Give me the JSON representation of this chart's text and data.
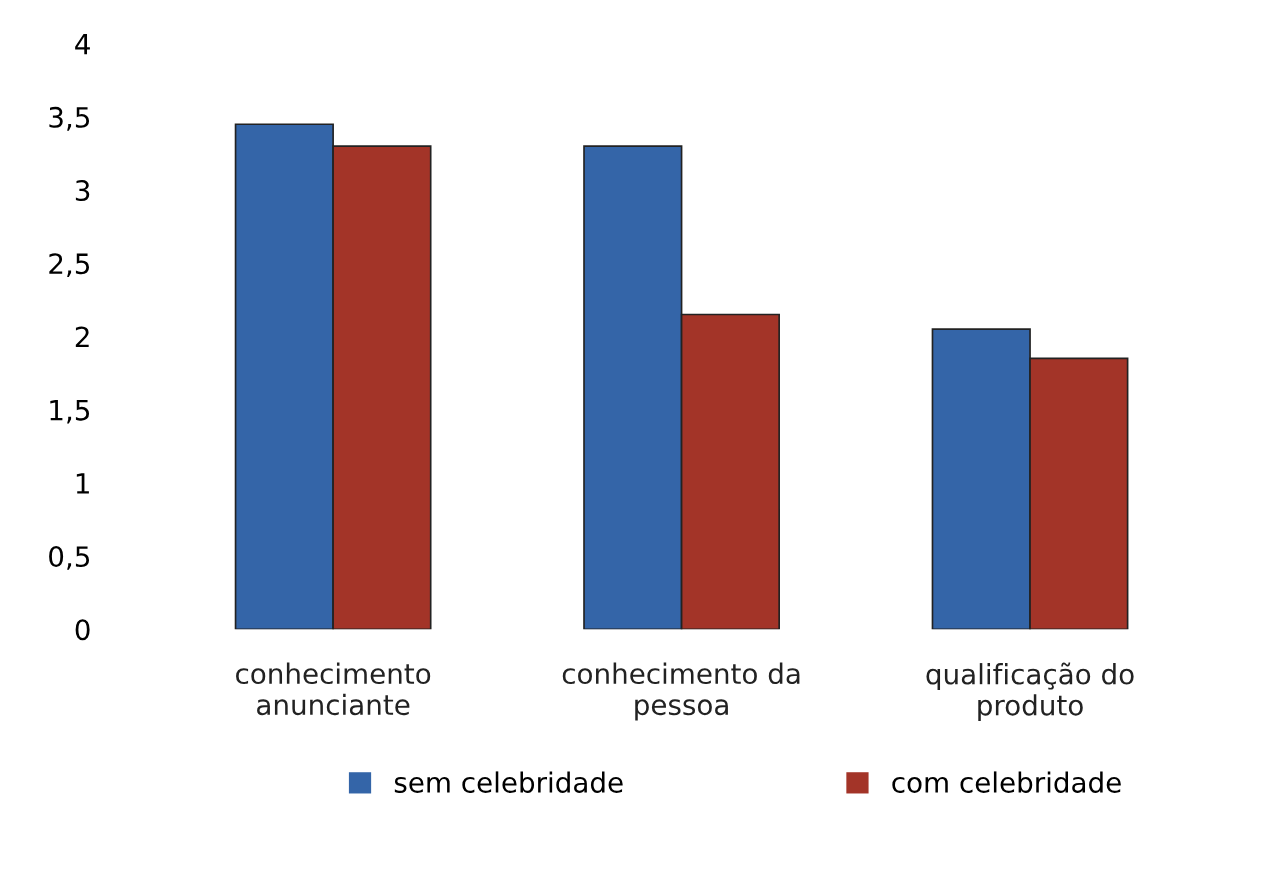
{
  "chart_data": {
    "type": "bar",
    "categories": [
      "conhecimento\nanunciante",
      "conhecimento da\npessoa",
      "qualificação do\nproduto"
    ],
    "series": [
      {
        "name": "sem celebridade",
        "color": "#3465a8",
        "values": [
          3.45,
          3.3,
          2.05
        ]
      },
      {
        "name": "com celebridade",
        "color": "#a33428",
        "values": [
          3.3,
          2.15,
          1.85
        ]
      }
    ],
    "ylim": [
      0,
      4
    ],
    "yticks": [
      0,
      {
        "value": 0.5,
        "label": "0,5"
      },
      1,
      {
        "value": 1.5,
        "label": "1,5"
      },
      2,
      {
        "value": 2.5,
        "label": "2,5"
      },
      3,
      {
        "value": 3.5,
        "label": "3,5"
      },
      4
    ],
    "grid": false,
    "legend": "bottom"
  }
}
